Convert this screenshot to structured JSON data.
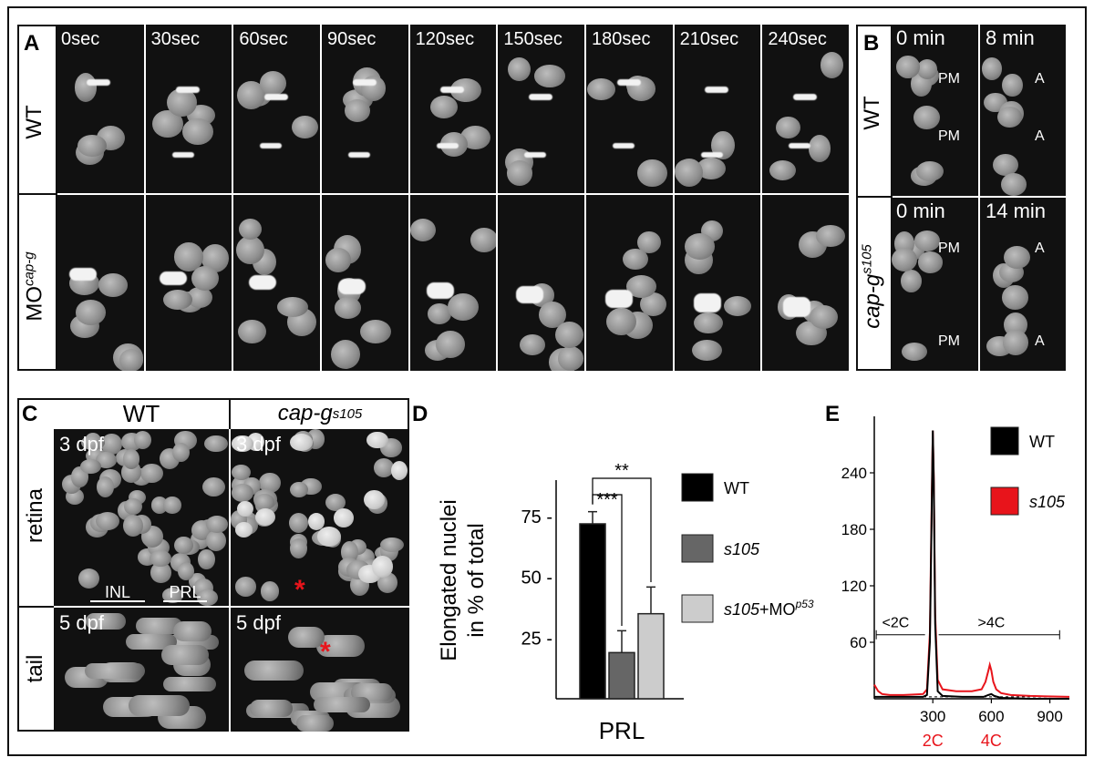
{
  "panels": {
    "A": {
      "letter": "A",
      "timepoints": [
        "0sec",
        "30sec",
        "60sec",
        "90sec",
        "120sec",
        "150sec",
        "180sec",
        "210sec",
        "240sec"
      ],
      "rows": [
        {
          "label": "WT"
        },
        {
          "label_main": "MO",
          "label_sup": "cap-g"
        }
      ]
    },
    "B": {
      "letter": "B",
      "rows": [
        {
          "label": "WT",
          "times": [
            "0 min",
            "8 min"
          ],
          "marks_left": [
            "PM",
            "PM"
          ],
          "marks_right": [
            "A",
            "A"
          ]
        },
        {
          "label_main": "cap-g",
          "label_sup": "s105",
          "times": [
            "0 min",
            "14 min"
          ],
          "marks_left": [
            "PM",
            "PM"
          ],
          "marks_right": [
            "A",
            "A"
          ]
        }
      ]
    },
    "C": {
      "letter": "C",
      "col_headers": [
        {
          "text": "WT"
        },
        {
          "main": "cap-g",
          "sup": "s105"
        }
      ],
      "row_labels": [
        "retina",
        "tail"
      ],
      "stage_labels": [
        "3 dpf",
        "3 dpf",
        "5 dpf",
        "5 dpf"
      ],
      "layer_labels": [
        "INL",
        "PRL"
      ],
      "asterisk": "*"
    },
    "D": {
      "letter": "D",
      "ylabel_line1": "Elongated nuclei",
      "ylabel_line2": "in % of total",
      "xlabel": "PRL",
      "sig_top": "**",
      "sig_bottom": "***",
      "legend": [
        {
          "text": "WT",
          "color": "#000000"
        },
        {
          "text": "s105",
          "color": "#666666"
        },
        {
          "text_main": "s105",
          "text_plus": "+MO",
          "sup": "p53",
          "color": "#cccccc"
        }
      ]
    },
    "E": {
      "letter": "E",
      "legend": [
        {
          "text": "WT",
          "color": "#000000"
        },
        {
          "text": "s105",
          "color": "#e8141b"
        }
      ],
      "ranges": [
        "<2C",
        ">4C"
      ],
      "ploidy_labels": [
        "2C",
        "4C"
      ]
    }
  },
  "chart_data": [
    {
      "type": "bar",
      "panel": "D",
      "categories": [
        "WT",
        "s105",
        "s105+MOp53"
      ],
      "values": [
        72,
        19,
        35
      ],
      "errors": [
        5,
        9,
        11
      ],
      "colors": [
        "#000000",
        "#666666",
        "#cccccc"
      ],
      "xlabel": "PRL",
      "ylabel": "Elongated nuclei in % of total",
      "yticks": [
        25,
        50,
        75
      ],
      "ylim": [
        0,
        90
      ]
    },
    {
      "type": "line",
      "panel": "E",
      "xlim": [
        0,
        1000
      ],
      "ylim": [
        0,
        300
      ],
      "xticks": [
        300,
        600,
        900
      ],
      "yticks": [
        60,
        120,
        180,
        240
      ],
      "series": [
        {
          "name": "WT",
          "color": "#000000",
          "x": [
            0,
            250,
            270,
            285,
            295,
            300,
            305,
            312,
            325,
            350,
            450,
            560,
            585,
            600,
            615,
            650,
            800,
            1000
          ],
          "y": [
            2,
            2,
            4,
            60,
            210,
            285,
            230,
            80,
            8,
            3,
            2,
            2,
            4,
            5,
            3,
            1,
            0,
            0
          ]
        },
        {
          "name": "s105",
          "color": "#e8141b",
          "x": [
            0,
            20,
            40,
            80,
            150,
            250,
            270,
            285,
            295,
            300,
            305,
            312,
            325,
            350,
            420,
            500,
            550,
            570,
            585,
            592,
            600,
            610,
            625,
            650,
            700,
            800,
            1000
          ],
          "y": [
            15,
            8,
            5,
            4,
            4,
            5,
            10,
            70,
            220,
            285,
            235,
            90,
            20,
            10,
            8,
            8,
            10,
            18,
            30,
            36,
            30,
            18,
            10,
            6,
            4,
            3,
            2
          ]
        }
      ]
    }
  ]
}
